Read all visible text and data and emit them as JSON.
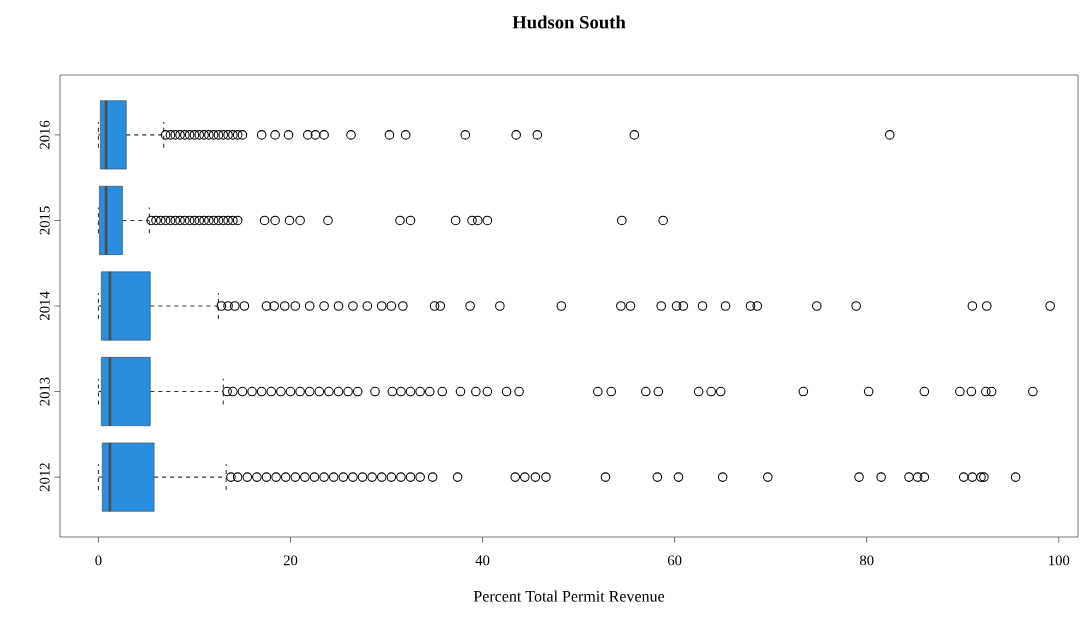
{
  "chart_data": {
    "type": "box",
    "orientation": "horizontal",
    "title": "Hudson South",
    "xlabel": "Percent Total Permit Revenue",
    "categories": [
      "2016",
      "2015",
      "2014",
      "2013",
      "2012"
    ],
    "color": "#2a8ee0",
    "xlim": [
      -4,
      102
    ],
    "xticks": [
      0,
      20,
      40,
      60,
      80,
      100
    ],
    "boxes": [
      {
        "low": 0,
        "q1": 0.2,
        "median": 0.8,
        "q3": 2.9,
        "high": 6.8,
        "outliers": [
          7,
          7.5,
          8,
          8.5,
          9,
          9.5,
          10,
          10.5,
          11,
          11.5,
          12,
          12.5,
          13,
          13.5,
          14,
          14.5,
          15,
          17,
          18.4,
          19.8,
          21.8,
          22.6,
          23.5,
          26.3,
          30.3,
          32,
          38.2,
          43.5,
          45.7,
          55.8,
          82.4
        ]
      },
      {
        "low": 0,
        "q1": 0.1,
        "median": 0.8,
        "q3": 2.5,
        "high": 5.3,
        "outliers": [
          5.5,
          6,
          6.5,
          7,
          7.5,
          8,
          8.5,
          9,
          9.5,
          10,
          10.5,
          11,
          11.5,
          12,
          12.5,
          13,
          13.5,
          14,
          14.5,
          17.3,
          18.4,
          19.9,
          21,
          23.9,
          31.4,
          32.5,
          37.2,
          38.9,
          39.5,
          40.5,
          54.5,
          58.8
        ]
      },
      {
        "low": 0,
        "q1": 0.3,
        "median": 1.2,
        "q3": 5.4,
        "high": 12.5,
        "outliers": [
          12.8,
          13.5,
          14.2,
          15.2,
          17.5,
          18.3,
          19.4,
          20.5,
          22,
          23.5,
          25,
          26.5,
          28,
          29.5,
          30.5,
          31.7,
          35,
          35.6,
          38.7,
          41.8,
          48.2,
          54.4,
          55.4,
          58.6,
          60.2,
          60.9,
          62.9,
          65.3,
          67.9,
          68.6,
          74.8,
          78.9,
          91,
          92.5,
          99.1
        ]
      },
      {
        "low": 0,
        "q1": 0.3,
        "median": 1.2,
        "q3": 5.4,
        "high": 13,
        "outliers": [
          13.4,
          14,
          15,
          16,
          17,
          18,
          19,
          20,
          21,
          22,
          23,
          24,
          25,
          26,
          27,
          28.8,
          30.6,
          31.5,
          32.5,
          33.5,
          34.5,
          35.8,
          37.7,
          39.3,
          40.5,
          42.5,
          43.8,
          52,
          53.4,
          57,
          58.3,
          62.5,
          63.8,
          64.8,
          73.4,
          80.2,
          86,
          89.7,
          90.9,
          92.4,
          93,
          97.3
        ]
      },
      {
        "low": 0,
        "q1": 0.4,
        "median": 1.2,
        "q3": 5.8,
        "high": 13.3,
        "outliers": [
          13.8,
          14.5,
          15.5,
          16.5,
          17.5,
          18.5,
          19.5,
          20.5,
          21.5,
          22.5,
          23.5,
          24.5,
          25.5,
          26.5,
          27.5,
          28.5,
          29.5,
          30.5,
          31.5,
          32.5,
          33.5,
          34.8,
          37.4,
          43.4,
          44.4,
          45.5,
          46.6,
          52.8,
          58.2,
          60.4,
          65,
          69.7,
          79.2,
          81.5,
          84.4,
          85.3,
          86,
          90.1,
          91,
          91.9,
          92.2,
          95.5
        ]
      }
    ]
  }
}
